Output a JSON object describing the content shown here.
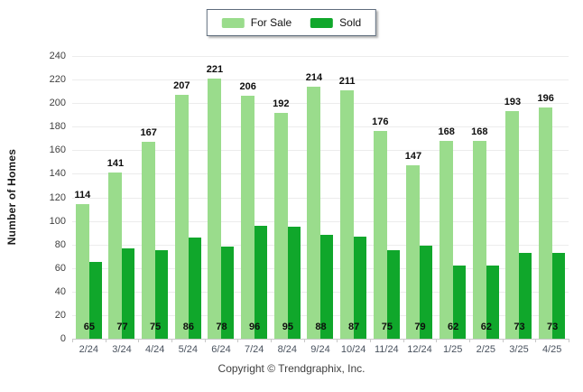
{
  "legend": {
    "for_sale_label": "For Sale",
    "sold_label": "Sold"
  },
  "colors": {
    "for_sale": "#9ADC8C",
    "sold": "#10A72B",
    "grid_line": "#ececec",
    "axis_line": "#c8c8c8",
    "value_label": "#0d0d0d",
    "x_tick_label": "#49525e"
  },
  "chart_data": {
    "type": "bar",
    "title": "",
    "xlabel": "",
    "ylabel": "Number of Homes",
    "ylim": [
      0,
      240
    ],
    "ytick_step": 20,
    "grid": true,
    "legend_position": "top-center",
    "categories": [
      "2/24",
      "3/24",
      "4/24",
      "5/24",
      "6/24",
      "7/24",
      "8/24",
      "9/24",
      "10/24",
      "11/24",
      "12/24",
      "1/25",
      "2/25",
      "3/25",
      "4/25"
    ],
    "series": [
      {
        "name": "For Sale",
        "color": "#9ADC8C",
        "values": [
          114,
          141,
          167,
          207,
          221,
          206,
          192,
          214,
          211,
          176,
          147,
          168,
          168,
          193,
          196
        ]
      },
      {
        "name": "Sold",
        "color": "#10A72B",
        "values": [
          65,
          77,
          75,
          86,
          78,
          96,
          95,
          88,
          87,
          75,
          79,
          62,
          62,
          73,
          73
        ]
      }
    ]
  },
  "footer": {
    "copyright": "Copyright © Trendgraphix, Inc."
  }
}
